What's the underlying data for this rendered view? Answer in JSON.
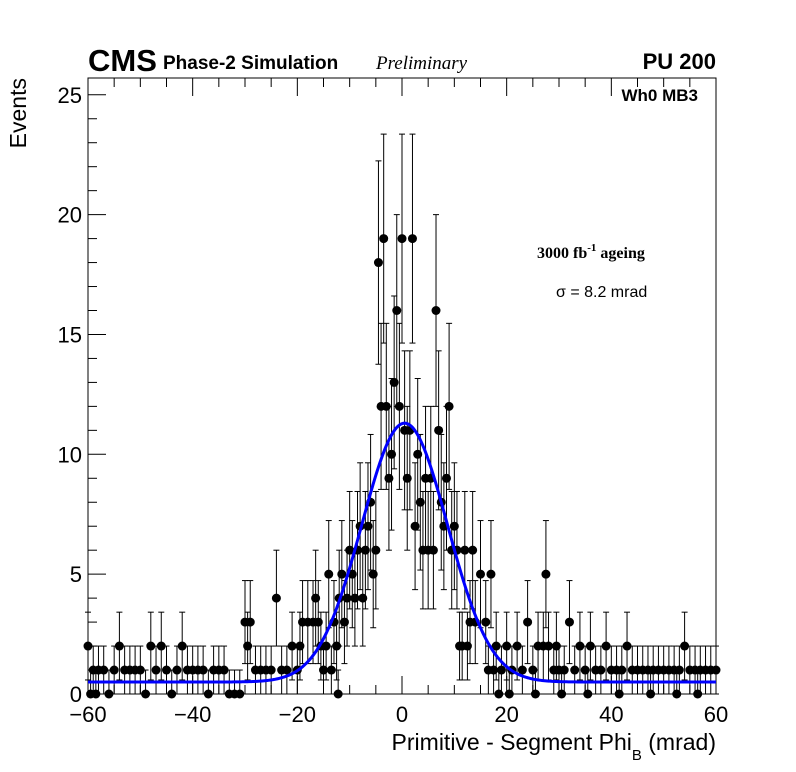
{
  "chart_data": {
    "type": "scatter",
    "experiment": "CMS",
    "subtitle": "Phase-2 Simulation",
    "status": "Preliminary",
    "pileup": "PU 200",
    "station": "Wh0 MB3",
    "ageing_prefix": "3000 fb",
    "ageing_exponent": "-1",
    "ageing_suffix": " ageing",
    "sigma_text": "σ = 8.2 mrad",
    "xlabel_main": "Primitive - Segment Phi",
    "xlabel_sub": "B",
    "xlabel_unit": " (mrad)",
    "ylabel": "Events",
    "xlim": [
      -60,
      60
    ],
    "ylim": [
      0,
      25.7
    ],
    "xticks": [
      -60,
      -40,
      -20,
      0,
      20,
      40,
      60
    ],
    "xtick_labels": [
      "−60",
      "−40",
      "−20",
      "0",
      "20",
      "40",
      "60"
    ],
    "yticks": [
      0,
      5,
      10,
      15,
      20,
      25
    ],
    "ytick_labels": [
      "0",
      "5",
      "10",
      "15",
      "20",
      "25"
    ],
    "bin_width": 0.5,
    "fit": {
      "type": "gaussian+constant",
      "amplitude": 10.8,
      "mean": 0.5,
      "sigma": 8.2,
      "constant": 0.5,
      "color": "#0000ff"
    },
    "marker_color": "#000000",
    "points": [
      {
        "x": -60,
        "y": 2
      },
      {
        "x": -59,
        "y": 1
      },
      {
        "x": -58,
        "y": 1
      },
      {
        "x": -57,
        "y": 1
      },
      {
        "x": -55,
        "y": 1
      },
      {
        "x": -54,
        "y": 2
      },
      {
        "x": -53,
        "y": 1
      },
      {
        "x": -52,
        "y": 1
      },
      {
        "x": -51,
        "y": 1
      },
      {
        "x": -50,
        "y": 1
      },
      {
        "x": -48,
        "y": 2
      },
      {
        "x": -47,
        "y": 1
      },
      {
        "x": -46,
        "y": 2
      },
      {
        "x": -45,
        "y": 1
      },
      {
        "x": -43,
        "y": 1
      },
      {
        "x": -42,
        "y": 2
      },
      {
        "x": -41,
        "y": 1
      },
      {
        "x": -40,
        "y": 1
      },
      {
        "x": -39,
        "y": 1
      },
      {
        "x": -38,
        "y": 1
      },
      {
        "x": -36,
        "y": 1
      },
      {
        "x": -35,
        "y": 1
      },
      {
        "x": -34,
        "y": 1
      },
      {
        "x": -30,
        "y": 3
      },
      {
        "x": -29.5,
        "y": 2
      },
      {
        "x": -29,
        "y": 3
      },
      {
        "x": -28,
        "y": 1
      },
      {
        "x": -27,
        "y": 1
      },
      {
        "x": -26,
        "y": 1
      },
      {
        "x": -25,
        "y": 1
      },
      {
        "x": -24,
        "y": 4
      },
      {
        "x": -23,
        "y": 1
      },
      {
        "x": -22,
        "y": 1
      },
      {
        "x": -21,
        "y": 2
      },
      {
        "x": -20,
        "y": 1
      },
      {
        "x": -19.5,
        "y": 2
      },
      {
        "x": -19,
        "y": 3
      },
      {
        "x": -18,
        "y": 3
      },
      {
        "x": -17,
        "y": 3
      },
      {
        "x": -16.5,
        "y": 4
      },
      {
        "x": -16,
        "y": 3
      },
      {
        "x": -15.5,
        "y": 2
      },
      {
        "x": -15,
        "y": 1
      },
      {
        "x": -14.5,
        "y": 2
      },
      {
        "x": -14,
        "y": 5
      },
      {
        "x": -13.5,
        "y": 1
      },
      {
        "x": -13,
        "y": 3
      },
      {
        "x": -12.5,
        "y": 2
      },
      {
        "x": -12,
        "y": 4
      },
      {
        "x": -11.5,
        "y": 5
      },
      {
        "x": -11,
        "y": 3
      },
      {
        "x": -10.5,
        "y": 4
      },
      {
        "x": -10,
        "y": 6
      },
      {
        "x": -9.5,
        "y": 5
      },
      {
        "x": -9,
        "y": 4
      },
      {
        "x": -8.5,
        "y": 6
      },
      {
        "x": -8,
        "y": 7
      },
      {
        "x": -7.5,
        "y": 4
      },
      {
        "x": -7,
        "y": 6
      },
      {
        "x": -6.5,
        "y": 7
      },
      {
        "x": -6,
        "y": 8
      },
      {
        "x": -5.5,
        "y": 5
      },
      {
        "x": -5,
        "y": 6
      },
      {
        "x": -4.5,
        "y": 18
      },
      {
        "x": -4,
        "y": 12
      },
      {
        "x": -3.5,
        "y": 19
      },
      {
        "x": -3,
        "y": 12
      },
      {
        "x": -2.5,
        "y": 9
      },
      {
        "x": -2,
        "y": 10
      },
      {
        "x": -1.5,
        "y": 13
      },
      {
        "x": -1,
        "y": 16
      },
      {
        "x": -0.5,
        "y": 12
      },
      {
        "x": 0,
        "y": 19
      },
      {
        "x": 0.5,
        "y": 11
      },
      {
        "x": 1,
        "y": 9
      },
      {
        "x": 1.5,
        "y": 11
      },
      {
        "x": 2,
        "y": 19
      },
      {
        "x": 2.5,
        "y": 7
      },
      {
        "x": 3,
        "y": 10
      },
      {
        "x": 3.5,
        "y": 8
      },
      {
        "x": 4,
        "y": 6
      },
      {
        "x": 4.5,
        "y": 9
      },
      {
        "x": 5,
        "y": 6
      },
      {
        "x": 5.5,
        "y": 9
      },
      {
        "x": 6,
        "y": 6
      },
      {
        "x": 6.5,
        "y": 16
      },
      {
        "x": 7,
        "y": 11
      },
      {
        "x": 7.5,
        "y": 8
      },
      {
        "x": 8,
        "y": 7
      },
      {
        "x": 8.5,
        "y": 9
      },
      {
        "x": 9,
        "y": 12
      },
      {
        "x": 9.5,
        "y": 6
      },
      {
        "x": 10,
        "y": 7
      },
      {
        "x": 10.5,
        "y": 6
      },
      {
        "x": 11,
        "y": 2
      },
      {
        "x": 11.5,
        "y": 2
      },
      {
        "x": 12,
        "y": 6
      },
      {
        "x": 12.5,
        "y": 2
      },
      {
        "x": 13,
        "y": 3
      },
      {
        "x": 13.5,
        "y": 6
      },
      {
        "x": 14,
        "y": 3
      },
      {
        "x": 15,
        "y": 5
      },
      {
        "x": 16,
        "y": 3
      },
      {
        "x": 16.5,
        "y": 1
      },
      {
        "x": 17,
        "y": 5
      },
      {
        "x": 17.5,
        "y": 1
      },
      {
        "x": 18,
        "y": 2
      },
      {
        "x": 19,
        "y": 1
      },
      {
        "x": 20,
        "y": 2
      },
      {
        "x": 21,
        "y": 1
      },
      {
        "x": 22,
        "y": 2
      },
      {
        "x": 23,
        "y": 1
      },
      {
        "x": 24,
        "y": 3
      },
      {
        "x": 25,
        "y": 1
      },
      {
        "x": 26,
        "y": 2
      },
      {
        "x": 27,
        "y": 2
      },
      {
        "x": 27.5,
        "y": 5
      },
      {
        "x": 28,
        "y": 2
      },
      {
        "x": 29,
        "y": 1
      },
      {
        "x": 29.5,
        "y": 2
      },
      {
        "x": 30,
        "y": 1
      },
      {
        "x": 31,
        "y": 1
      },
      {
        "x": 32,
        "y": 3
      },
      {
        "x": 33,
        "y": 1
      },
      {
        "x": 34,
        "y": 2
      },
      {
        "x": 35,
        "y": 1
      },
      {
        "x": 36,
        "y": 2
      },
      {
        "x": 37,
        "y": 1
      },
      {
        "x": 38,
        "y": 1
      },
      {
        "x": 39,
        "y": 2
      },
      {
        "x": 40,
        "y": 1
      },
      {
        "x": 41,
        "y": 1
      },
      {
        "x": 42,
        "y": 1
      },
      {
        "x": 43,
        "y": 2
      },
      {
        "x": 44,
        "y": 1
      },
      {
        "x": 45,
        "y": 1
      },
      {
        "x": 46,
        "y": 1
      },
      {
        "x": 47,
        "y": 1
      },
      {
        "x": 48,
        "y": 1
      },
      {
        "x": 49,
        "y": 1
      },
      {
        "x": 50,
        "y": 1
      },
      {
        "x": 51,
        "y": 1
      },
      {
        "x": 52,
        "y": 1
      },
      {
        "x": 53,
        "y": 1
      },
      {
        "x": 54,
        "y": 2
      },
      {
        "x": 55,
        "y": 1
      },
      {
        "x": 56,
        "y": 1
      },
      {
        "x": 57,
        "y": 1
      },
      {
        "x": 58,
        "y": 1
      },
      {
        "x": 59,
        "y": 1
      },
      {
        "x": -59.5,
        "y": 0
      },
      {
        "x": -58.5,
        "y": 0
      },
      {
        "x": -56,
        "y": 0
      },
      {
        "x": -49,
        "y": 0
      },
      {
        "x": -44,
        "y": 0
      },
      {
        "x": -37,
        "y": 0
      },
      {
        "x": -33,
        "y": 0
      },
      {
        "x": -32,
        "y": 0
      },
      {
        "x": -31,
        "y": 0
      },
      {
        "x": -12.2,
        "y": 0
      },
      {
        "x": 18.5,
        "y": 0
      },
      {
        "x": 20.5,
        "y": 0
      },
      {
        "x": 25.5,
        "y": 0
      },
      {
        "x": 30.5,
        "y": 0
      },
      {
        "x": 35.5,
        "y": 0
      },
      {
        "x": 41.5,
        "y": 0
      },
      {
        "x": 47.5,
        "y": 0
      },
      {
        "x": 52.5,
        "y": 0
      },
      {
        "x": 56.5,
        "y": 0
      },
      {
        "x": 60,
        "y": 1
      }
    ]
  }
}
